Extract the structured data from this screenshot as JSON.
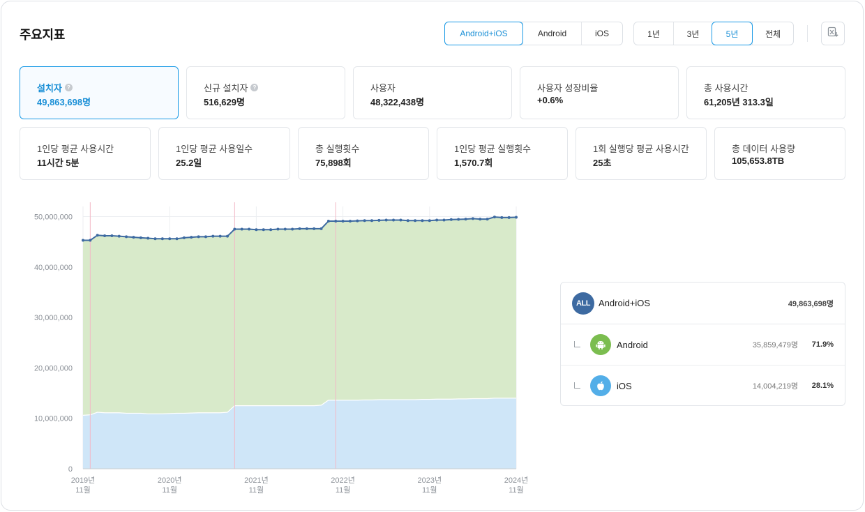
{
  "title": "주요지표",
  "platform_tabs": [
    "Android+iOS",
    "Android",
    "iOS"
  ],
  "platform_selected": "Android+iOS",
  "period_tabs": [
    "1년",
    "3년",
    "5년",
    "전체"
  ],
  "period_selected": "5년",
  "download_icon": "excel-download-icon",
  "metrics_row1": [
    {
      "label": "설치자",
      "value": "49,863,698명",
      "help": true,
      "active": true
    },
    {
      "label": "신규 설치자",
      "value": "516,629명",
      "help": true
    },
    {
      "label": "사용자",
      "value": "48,322,438명"
    },
    {
      "label": "사용자 성장비율",
      "value": "+0.6%"
    },
    {
      "label": "총 사용시간",
      "value": "61,205년 313.3일"
    }
  ],
  "metrics_row2": [
    {
      "label": "1인당 평균 사용시간",
      "value": "11시간 5분"
    },
    {
      "label": "1인당 평균 사용일수",
      "value": "25.2일"
    },
    {
      "label": "총 실행횟수",
      "value": "75,898회"
    },
    {
      "label": "1인당 평균 실행횟수",
      "value": "1,570.7회"
    },
    {
      "label": "1회 실행당 평균 사용시간",
      "value": "25초"
    },
    {
      "label": "총 데이터 사용량",
      "value": "105,653.8TB"
    }
  ],
  "chart_data": {
    "type": "area",
    "ylim": [
      0,
      52000000
    ],
    "y_ticks": [
      0,
      10000000,
      20000000,
      30000000,
      40000000,
      50000000
    ],
    "y_tick_labels": [
      "0",
      "10,000,000",
      "20,000,000",
      "30,000,000",
      "40,000,000",
      "50,000,000"
    ],
    "x_tick_labels": [
      {
        "line1": "2019년",
        "line2": "11월"
      },
      {
        "line1": "2020년",
        "line2": "11월"
      },
      {
        "line1": "2021년",
        "line2": "11월"
      },
      {
        "line1": "2022년",
        "line2": "11월"
      },
      {
        "line1": "2023년",
        "line2": "11월"
      },
      {
        "line1": "2024년",
        "line2": "11월"
      }
    ],
    "x_ticks": [
      "2019-11",
      "2020-11",
      "2021-11",
      "2022-11",
      "2023-11",
      "2024-11"
    ],
    "x": [
      "2019-11",
      "2019-12",
      "2020-01",
      "2020-02",
      "2020-03",
      "2020-04",
      "2020-05",
      "2020-06",
      "2020-07",
      "2020-08",
      "2020-09",
      "2020-10",
      "2020-11",
      "2020-12",
      "2021-01",
      "2021-02",
      "2021-03",
      "2021-04",
      "2021-05",
      "2021-06",
      "2021-07",
      "2021-08",
      "2021-09",
      "2021-10",
      "2021-11",
      "2021-12",
      "2022-01",
      "2022-02",
      "2022-03",
      "2022-04",
      "2022-05",
      "2022-06",
      "2022-07",
      "2022-08",
      "2022-09",
      "2022-10",
      "2022-11",
      "2022-12",
      "2023-01",
      "2023-02",
      "2023-03",
      "2023-04",
      "2023-05",
      "2023-06",
      "2023-07",
      "2023-08",
      "2023-09",
      "2023-10",
      "2023-11",
      "2023-12",
      "2024-01",
      "2024-02",
      "2024-03",
      "2024-04",
      "2024-05",
      "2024-06",
      "2024-07",
      "2024-08",
      "2024-09",
      "2024-10",
      "2024-11"
    ],
    "series": [
      {
        "name": "Android+iOS",
        "color": "#3d6aa1",
        "values": [
          45300000,
          45300000,
          46300000,
          46200000,
          46200000,
          46100000,
          46000000,
          45900000,
          45800000,
          45700000,
          45600000,
          45600000,
          45600000,
          45600000,
          45800000,
          45900000,
          46000000,
          46000000,
          46100000,
          46100000,
          46100000,
          47500000,
          47500000,
          47500000,
          47400000,
          47400000,
          47400000,
          47500000,
          47500000,
          47500000,
          47600000,
          47600000,
          47600000,
          47600000,
          49100000,
          49100000,
          49100000,
          49100000,
          49150000,
          49200000,
          49200000,
          49250000,
          49300000,
          49300000,
          49300000,
          49200000,
          49200000,
          49200000,
          49200000,
          49300000,
          49300000,
          49400000,
          49450000,
          49500000,
          49600000,
          49500000,
          49500000,
          49900000,
          49800000,
          49800000,
          49860000
        ]
      },
      {
        "name": "iOS",
        "color": "#cfe6f8",
        "values": [
          10600000,
          10700000,
          11200000,
          11100000,
          11100000,
          11100000,
          11000000,
          11000000,
          11000000,
          10900000,
          10900000,
          10900000,
          10950000,
          11000000,
          11000000,
          11050000,
          11100000,
          11100000,
          11100000,
          11100000,
          11200000,
          12500000,
          12500000,
          12500000,
          12500000,
          12500000,
          12500000,
          12500000,
          12500000,
          12500000,
          12500000,
          12500000,
          12500000,
          12600000,
          13600000,
          13600000,
          13600000,
          13600000,
          13600000,
          13650000,
          13650000,
          13700000,
          13700000,
          13700000,
          13700000,
          13700000,
          13700000,
          13750000,
          13750000,
          13800000,
          13800000,
          13800000,
          13850000,
          13850000,
          13900000,
          13900000,
          13900000,
          14000000,
          14000000,
          14000000,
          14004219
        ]
      }
    ],
    "android_area_color": "#d8eaca",
    "marker_lines": [
      "2019-12",
      "2021-08",
      "2022-10"
    ]
  },
  "legend": {
    "total": {
      "icon": "all-badge-icon",
      "badge_text": "ALL",
      "name": "Android+iOS",
      "value": "49,863,698명"
    },
    "android": {
      "icon": "android-icon",
      "name": "Android",
      "value": "35,859,479명",
      "pct": "71.9%"
    },
    "ios": {
      "icon": "apple-icon",
      "name": "iOS",
      "value": "14,004,219명",
      "pct": "28.1%"
    }
  }
}
